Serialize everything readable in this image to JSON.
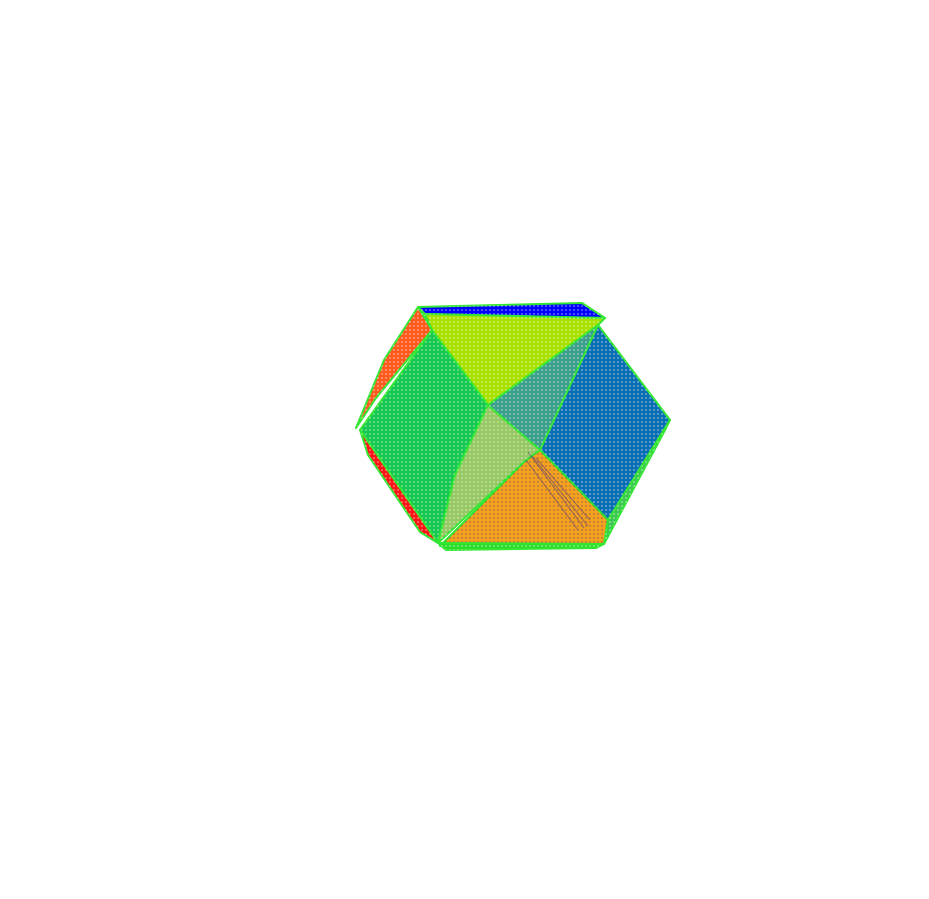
{
  "scene": {
    "object": "cuboctahedron-point-cloud",
    "background_color": "#ffffff",
    "faces": [
      {
        "name": "top-face",
        "color": "#0000ff"
      },
      {
        "name": "upper-back-face",
        "color": "#a8e000"
      },
      {
        "name": "upper-left-face",
        "color": "#ff5a1e"
      },
      {
        "name": "left-face",
        "color": "#14c850"
      },
      {
        "name": "right-face",
        "color": "#0a6eb4"
      },
      {
        "name": "center-face",
        "color": "#96c864"
      },
      {
        "name": "center-back-face",
        "color": "#3aa08c"
      },
      {
        "name": "lower-center-face",
        "color": "#f5a01e"
      },
      {
        "name": "lower-left-face",
        "color": "#ff1414"
      },
      {
        "name": "lower-right-face",
        "color": "#3cc850"
      },
      {
        "name": "bottom-face",
        "color": "#28dc28"
      }
    ],
    "edge_color": "#32e632",
    "dot_color": "#ffffff"
  }
}
